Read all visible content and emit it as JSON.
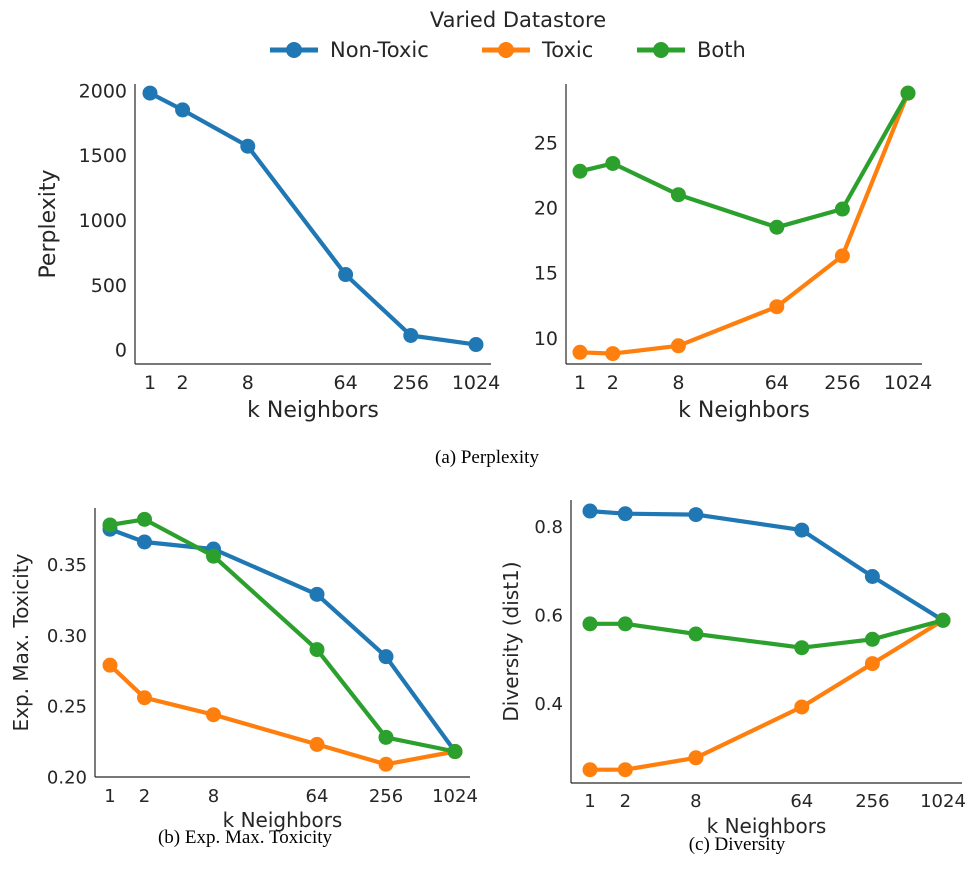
{
  "legend": {
    "title": "Varied Datastore",
    "entries": [
      {
        "label": "Non-Toxic",
        "color": "#1f77b4"
      },
      {
        "label": "Toxic",
        "color": "#ff7f0e"
      },
      {
        "label": "Both",
        "color": "#2ca02c"
      }
    ]
  },
  "captions": {
    "a": "(a) Perplexity",
    "b": "(b) Exp. Max. Toxicity",
    "c": "(c) Diversity"
  },
  "chart_data": [
    {
      "id": "perplexity-nontoxic",
      "type": "line",
      "xlabel": "k Neighbors",
      "ylabel": "Perplexity",
      "categories": [
        "1",
        "2",
        "8",
        "64",
        "256",
        "1024"
      ],
      "x_scale": "log2",
      "ylim": [
        -110,
        2050
      ],
      "yticks": [
        0,
        500,
        1000,
        1500,
        2000
      ],
      "series": [
        {
          "name": "Non-Toxic",
          "color": "#1f77b4",
          "values": [
            1980,
            1850,
            1570,
            580,
            110,
            40
          ]
        }
      ]
    },
    {
      "id": "perplexity-toxic-both",
      "type": "line",
      "xlabel": "k Neighbors",
      "ylabel": "",
      "categories": [
        "1",
        "2",
        "8",
        "64",
        "256",
        "1024"
      ],
      "x_scale": "log2",
      "ylim": [
        8.0,
        29.5
      ],
      "yticks": [
        10,
        15,
        20,
        25
      ],
      "series": [
        {
          "name": "Toxic",
          "color": "#ff7f0e",
          "values": [
            8.9,
            8.8,
            9.4,
            12.4,
            16.3,
            28.8
          ]
        },
        {
          "name": "Both",
          "color": "#2ca02c",
          "values": [
            22.8,
            23.4,
            21.0,
            18.5,
            19.9,
            28.8
          ]
        }
      ]
    },
    {
      "id": "exp-max-toxicity",
      "type": "line",
      "xlabel": "k Neighbors",
      "ylabel": "Exp. Max. Toxicity",
      "categories": [
        "1",
        "2",
        "8",
        "64",
        "256",
        "1024"
      ],
      "x_scale": "log2",
      "ylim": [
        0.2,
        0.39
      ],
      "yticks": [
        0.2,
        0.25,
        0.3,
        0.35
      ],
      "ytick_labels": [
        "0.20",
        "0.25",
        "0.30",
        "0.35"
      ],
      "series": [
        {
          "name": "Non-Toxic",
          "color": "#1f77b4",
          "values": [
            0.375,
            0.366,
            0.361,
            0.329,
            0.285,
            0.218
          ]
        },
        {
          "name": "Toxic",
          "color": "#ff7f0e",
          "values": [
            0.279,
            0.256,
            0.244,
            0.223,
            0.209,
            0.218
          ]
        },
        {
          "name": "Both",
          "color": "#2ca02c",
          "values": [
            0.378,
            0.382,
            0.356,
            0.29,
            0.228,
            0.218
          ]
        }
      ]
    },
    {
      "id": "diversity",
      "type": "line",
      "xlabel": "k Neighbors",
      "ylabel": "Diversity (dist1)",
      "categories": [
        "1",
        "2",
        "8",
        "64",
        "256",
        "1024"
      ],
      "x_scale": "log2",
      "ylim": [
        0.22,
        0.86
      ],
      "yticks": [
        0.4,
        0.6,
        0.8
      ],
      "ytick_labels": [
        "0.4",
        "0.6",
        "0.8"
      ],
      "series": [
        {
          "name": "Non-Toxic",
          "color": "#1f77b4",
          "values": [
            0.835,
            0.829,
            0.827,
            0.792,
            0.687,
            0.588
          ]
        },
        {
          "name": "Toxic",
          "color": "#ff7f0e",
          "values": [
            0.25,
            0.25,
            0.277,
            0.392,
            0.49,
            0.588
          ]
        },
        {
          "name": "Both",
          "color": "#2ca02c",
          "values": [
            0.58,
            0.58,
            0.557,
            0.526,
            0.545,
            0.588
          ]
        }
      ]
    }
  ]
}
